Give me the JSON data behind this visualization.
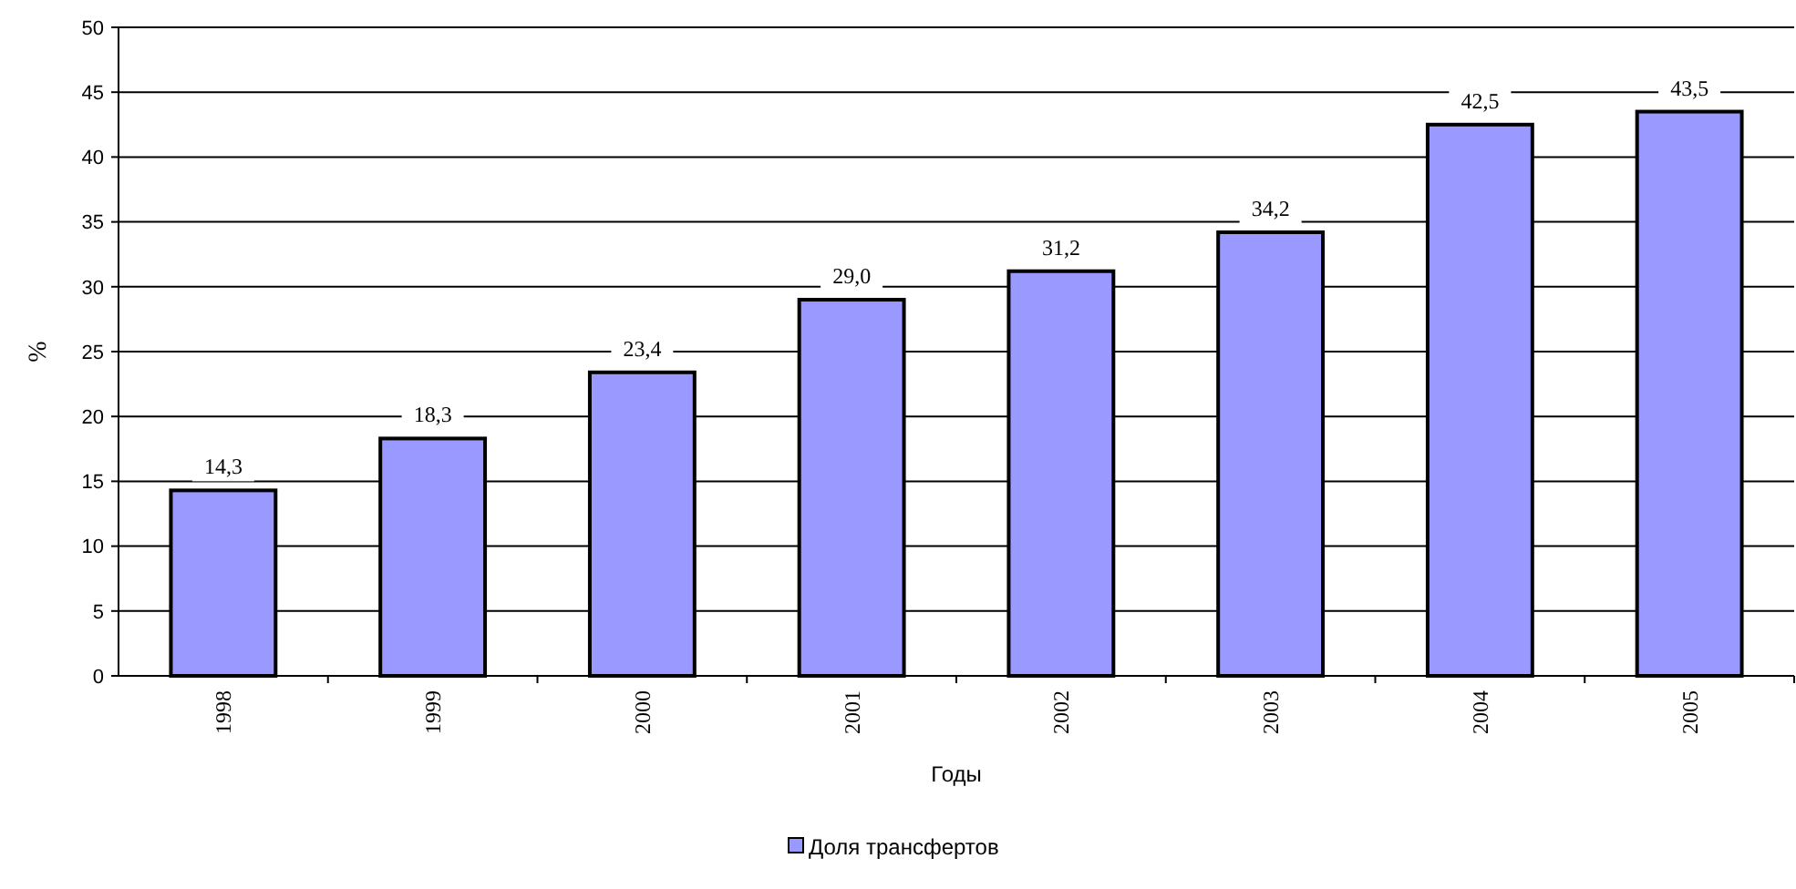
{
  "chart_data": {
    "type": "bar",
    "xlabel": "Годы",
    "ylabel": "%",
    "categories": [
      "1998",
      "1999",
      "2000",
      "2001",
      "2002",
      "2003",
      "2004",
      "2005"
    ],
    "series": [
      {
        "name": "Доля трансфертов",
        "color": "#9999ff",
        "values": [
          14.3,
          18.3,
          23.4,
          29.0,
          31.2,
          34.2,
          42.5,
          43.5
        ],
        "value_labels": [
          "14,3",
          "18,3",
          "23,4",
          "29,0",
          "31,2",
          "34,2",
          "42,5",
          "43,5"
        ]
      }
    ],
    "ylim": [
      0,
      50
    ],
    "yticks": [
      0,
      5,
      10,
      15,
      20,
      25,
      30,
      35,
      40,
      45,
      50
    ],
    "grid": "y",
    "legend": "bottom"
  }
}
